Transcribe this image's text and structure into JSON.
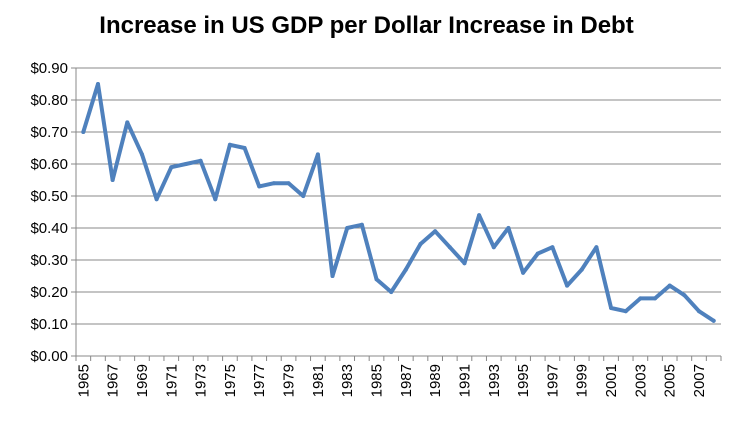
{
  "chart_data": {
    "type": "line",
    "title": "Increase in US GDP per Dollar Increase in Debt",
    "xlabel": "",
    "ylabel": "",
    "x": [
      1965,
      1966,
      1967,
      1968,
      1969,
      1970,
      1971,
      1972,
      1973,
      1974,
      1975,
      1976,
      1977,
      1978,
      1979,
      1980,
      1981,
      1982,
      1983,
      1984,
      1985,
      1986,
      1987,
      1988,
      1989,
      1990,
      1991,
      1992,
      1993,
      1994,
      1995,
      1996,
      1997,
      1998,
      1999,
      2000,
      2001,
      2002,
      2003,
      2004,
      2005,
      2006,
      2007,
      2008
    ],
    "x_tick_labels": [
      "1965",
      "1967",
      "1969",
      "1971",
      "1973",
      "1975",
      "1977",
      "1979",
      "1981",
      "1983",
      "1985",
      "1987",
      "1989",
      "1991",
      "1993",
      "1995",
      "1997",
      "1999",
      "2001",
      "2003",
      "2005",
      "2007"
    ],
    "series": [
      {
        "values": [
          0.7,
          0.85,
          0.55,
          0.73,
          0.63,
          0.49,
          0.59,
          0.6,
          0.61,
          0.49,
          0.66,
          0.65,
          0.53,
          0.54,
          0.54,
          0.5,
          0.63,
          0.25,
          0.4,
          0.41,
          0.24,
          0.2,
          0.27,
          0.35,
          0.39,
          0.34,
          0.29,
          0.44,
          0.34,
          0.4,
          0.26,
          0.32,
          0.34,
          0.22,
          0.27,
          0.34,
          0.15,
          0.14,
          0.18,
          0.18,
          0.22,
          0.19,
          0.14,
          0.11
        ]
      }
    ],
    "y_tick_labels": [
      "$0.00",
      "$0.10",
      "$0.20",
      "$0.30",
      "$0.40",
      "$0.50",
      "$0.60",
      "$0.70",
      "$0.80",
      "$0.90"
    ],
    "ylim": [
      0,
      0.9
    ],
    "grid": true,
    "legend": "none",
    "colors": {
      "line": "#4f81bd",
      "grid": "#888888",
      "axis": "#888888"
    }
  }
}
